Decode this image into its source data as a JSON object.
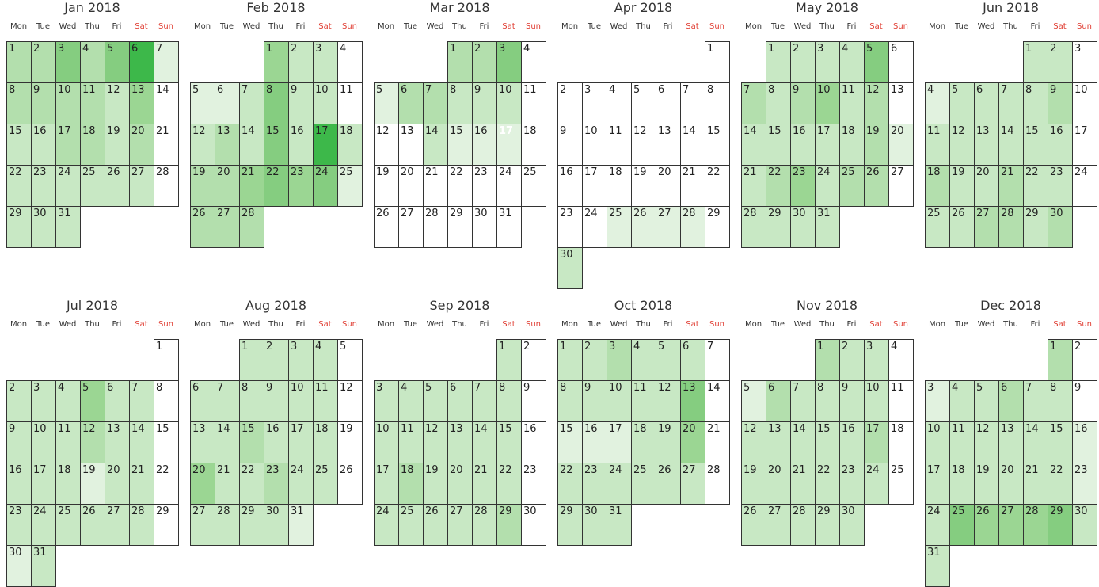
{
  "chart_data": {
    "type": "heatmap",
    "year": 2018,
    "weekday_labels": [
      "Mon",
      "Tue",
      "Wed",
      "Thu",
      "Fri",
      "Sat",
      "Sun"
    ],
    "weekend_color": "#e03c31",
    "color_scale": {
      "empty": "#ffffff",
      "levels": [
        "#ffffff",
        "#e1f2df",
        "#c8e8c4",
        "#b3dfad",
        "#9bd693",
        "#85cd80",
        "#67c268",
        "#3db84a"
      ]
    },
    "months": [
      {
        "title": "Jan 2018",
        "start_weekday": 0,
        "days": 31,
        "levels": [
          3,
          3,
          5,
          3,
          5,
          7,
          1,
          3,
          3,
          3,
          3,
          2,
          4,
          0,
          2,
          2,
          3,
          3,
          2,
          3,
          0,
          2,
          2,
          2,
          2,
          2,
          2,
          0,
          2,
          2,
          2
        ]
      },
      {
        "title": "Feb 2018",
        "start_weekday": 3,
        "days": 28,
        "levels": [
          4,
          2,
          2,
          0,
          1,
          1,
          2,
          5,
          2,
          2,
          0,
          2,
          3,
          2,
          5,
          2,
          7,
          2,
          3,
          3,
          4,
          5,
          4,
          5,
          1,
          3,
          3,
          3
        ]
      },
      {
        "title": "Mar 2018",
        "start_weekday": 3,
        "days": 31,
        "levels": [
          3,
          3,
          5,
          0,
          1,
          3,
          3,
          2,
          2,
          2,
          0,
          0,
          0,
          2,
          1,
          1,
          1,
          0,
          0,
          0,
          0,
          0,
          0,
          0,
          0,
          0,
          0,
          0,
          0,
          0,
          0
        ]
      },
      {
        "title": "Apr 2018",
        "start_weekday": 6,
        "days": 30,
        "levels": [
          0,
          0,
          0,
          0,
          0,
          0,
          0,
          0,
          0,
          0,
          0,
          0,
          0,
          0,
          0,
          0,
          0,
          0,
          0,
          0,
          0,
          0,
          0,
          0,
          1,
          1,
          1,
          1,
          0,
          2
        ]
      },
      {
        "title": "May 2018",
        "start_weekday": 1,
        "days": 31,
        "levels": [
          2,
          2,
          2,
          2,
          5,
          0,
          3,
          2,
          3,
          4,
          2,
          3,
          0,
          2,
          2,
          2,
          2,
          2,
          3,
          1,
          2,
          3,
          4,
          2,
          3,
          3,
          0,
          2,
          2,
          2,
          2
        ]
      },
      {
        "title": "Jun 2018",
        "start_weekday": 4,
        "days": 30,
        "levels": [
          2,
          2,
          0,
          1,
          2,
          2,
          2,
          2,
          3,
          0,
          2,
          2,
          2,
          2,
          2,
          2,
          0,
          3,
          2,
          2,
          3,
          2,
          2,
          0,
          2,
          2,
          3,
          3,
          2,
          3
        ]
      },
      {
        "title": "Jul 2018",
        "start_weekday": 6,
        "days": 31,
        "levels": [
          0,
          2,
          2,
          2,
          4,
          2,
          2,
          0,
          2,
          2,
          2,
          3,
          2,
          2,
          0,
          2,
          2,
          2,
          1,
          2,
          2,
          0,
          2,
          2,
          2,
          2,
          2,
          2,
          0,
          1,
          2
        ]
      },
      {
        "title": "Aug 2018",
        "start_weekday": 2,
        "days": 31,
        "levels": [
          2,
          2,
          2,
          2,
          0,
          2,
          2,
          2,
          2,
          2,
          2,
          0,
          2,
          2,
          3,
          2,
          2,
          2,
          0,
          4,
          2,
          2,
          3,
          2,
          2,
          0,
          2,
          2,
          2,
          2,
          1
        ]
      },
      {
        "title": "Sep 2018",
        "start_weekday": 5,
        "days": 30,
        "levels": [
          2,
          0,
          2,
          2,
          2,
          2,
          2,
          2,
          0,
          2,
          2,
          2,
          2,
          2,
          2,
          0,
          2,
          3,
          2,
          2,
          2,
          2,
          0,
          2,
          2,
          2,
          2,
          2,
          3,
          0
        ]
      },
      {
        "title": "Oct 2018",
        "start_weekday": 0,
        "days": 31,
        "levels": [
          2,
          2,
          3,
          2,
          2,
          2,
          0,
          2,
          2,
          2,
          2,
          2,
          5,
          0,
          1,
          1,
          1,
          2,
          2,
          4,
          0,
          2,
          2,
          2,
          2,
          2,
          2,
          0,
          2,
          2,
          2
        ]
      },
      {
        "title": "Nov 2018",
        "start_weekday": 3,
        "days": 30,
        "levels": [
          3,
          2,
          2,
          0,
          1,
          3,
          2,
          2,
          2,
          2,
          0,
          2,
          2,
          2,
          2,
          2,
          3,
          0,
          2,
          2,
          2,
          2,
          2,
          2,
          0,
          2,
          2,
          2,
          2,
          2
        ]
      },
      {
        "title": "Dec 2018",
        "start_weekday": 5,
        "days": 31,
        "levels": [
          3,
          0,
          1,
          2,
          2,
          3,
          2,
          2,
          0,
          2,
          2,
          2,
          2,
          2,
          2,
          1,
          2,
          2,
          2,
          2,
          2,
          2,
          1,
          2,
          5,
          4,
          4,
          4,
          5,
          2,
          2
        ]
      }
    ],
    "highlight": {
      "month": 2,
      "day": 17
    }
  }
}
